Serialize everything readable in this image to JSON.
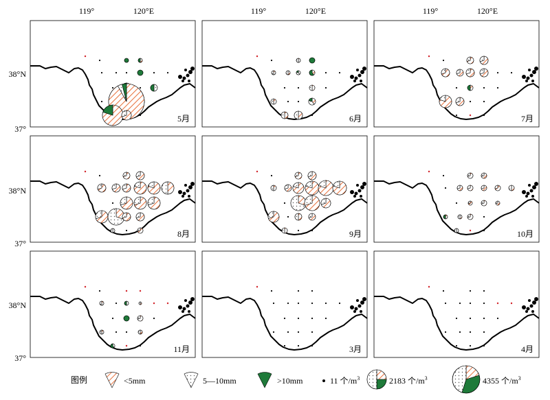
{
  "figure": {
    "lon_labels": [
      "119°",
      "120°E"
    ],
    "lat_labels": [
      "38°N",
      "37°"
    ],
    "panels": [
      {
        "month": "5月"
      },
      {
        "month": "6月"
      },
      {
        "month": "7月"
      },
      {
        "month": "8月"
      },
      {
        "month": "9月"
      },
      {
        "month": "10月"
      },
      {
        "month": "11月"
      },
      {
        "month": "3月"
      },
      {
        "month": "4月"
      }
    ]
  },
  "legend": {
    "title": "图例",
    "size_classes": [
      {
        "label": "<5mm",
        "pattern": "orange-hatched"
      },
      {
        "label": "5—10mm",
        "pattern": "dotted"
      },
      {
        "label": ">10mm",
        "pattern": "solid-green"
      }
    ],
    "abundance_scale": [
      {
        "label": "11 个/m",
        "sup": "3"
      },
      {
        "label": "2183 个/m",
        "sup": "3"
      },
      {
        "label": "4355 个/m",
        "sup": "3"
      }
    ]
  },
  "colors": {
    "small_fraction": "#e8703a",
    "medium_fraction": "#555555",
    "large_fraction": "#1f7a3a",
    "coast": "#000000",
    "empty_station": "#d9272e"
  }
}
